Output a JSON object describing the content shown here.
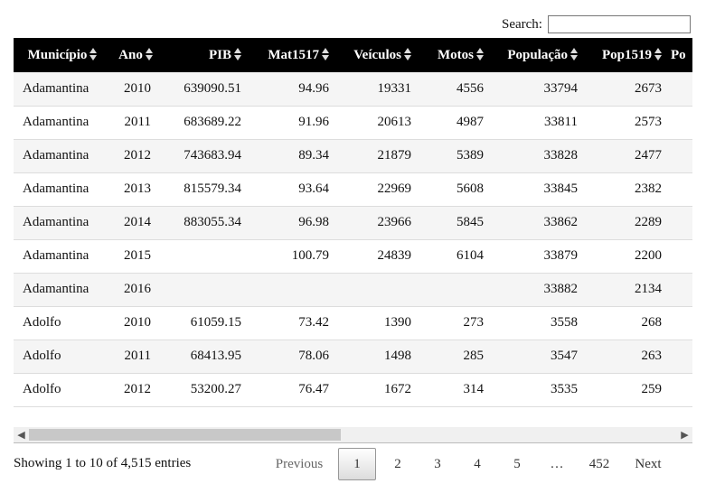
{
  "search": {
    "label": "Search:",
    "value": ""
  },
  "table": {
    "columns": [
      "Município",
      "Ano",
      "PIB",
      "Mat1517",
      "Veículos",
      "Motos",
      "População",
      "Pop1519",
      "Po"
    ],
    "rows": [
      [
        "Adamantina",
        "2010",
        "639090.51",
        "94.96",
        "19331",
        "4556",
        "33794",
        "2673",
        ""
      ],
      [
        "Adamantina",
        "2011",
        "683689.22",
        "91.96",
        "20613",
        "4987",
        "33811",
        "2573",
        ""
      ],
      [
        "Adamantina",
        "2012",
        "743683.94",
        "89.34",
        "21879",
        "5389",
        "33828",
        "2477",
        ""
      ],
      [
        "Adamantina",
        "2013",
        "815579.34",
        "93.64",
        "22969",
        "5608",
        "33845",
        "2382",
        ""
      ],
      [
        "Adamantina",
        "2014",
        "883055.34",
        "96.98",
        "23966",
        "5845",
        "33862",
        "2289",
        ""
      ],
      [
        "Adamantina",
        "2015",
        "",
        "100.79",
        "24839",
        "6104",
        "33879",
        "2200",
        ""
      ],
      [
        "Adamantina",
        "2016",
        "",
        "",
        "",
        "",
        "33882",
        "2134",
        ""
      ],
      [
        "Adolfo",
        "2010",
        "61059.15",
        "73.42",
        "1390",
        "273",
        "3558",
        "268",
        ""
      ],
      [
        "Adolfo",
        "2011",
        "68413.95",
        "78.06",
        "1498",
        "285",
        "3547",
        "263",
        ""
      ],
      [
        "Adolfo",
        "2012",
        "53200.27",
        "76.47",
        "1672",
        "314",
        "3535",
        "259",
        ""
      ]
    ]
  },
  "info": "Showing 1 to 10 of 4,515 entries",
  "pagination": {
    "previous": "Previous",
    "current": "1",
    "pages": [
      "2",
      "3",
      "4",
      "5"
    ],
    "ellipsis": "…",
    "last": "452",
    "next": "Next"
  },
  "colors": {
    "header_bg": "#000000",
    "header_text": "#ffffff",
    "stripe": "#f5f5f5"
  },
  "icons": {
    "sort": "sort-both-icon",
    "scroll_left": "chevron-left-icon",
    "scroll_right": "chevron-right-icon"
  }
}
